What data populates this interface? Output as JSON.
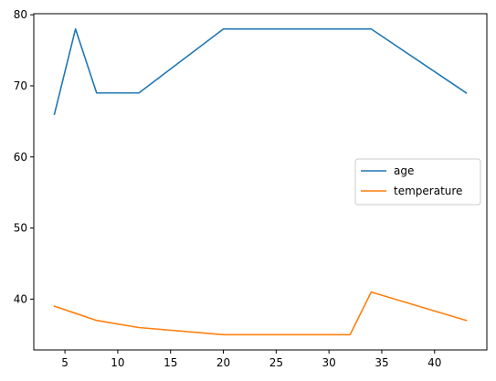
{
  "chart_data": {
    "type": "line",
    "title": "",
    "xlabel": "",
    "ylabel": "",
    "x": [
      4,
      6,
      8,
      12,
      20,
      32,
      34,
      43
    ],
    "xlim": [
      2.05,
      44.95
    ],
    "ylim": [
      32.85,
      80.15
    ],
    "xticks": [
      5,
      10,
      15,
      20,
      25,
      30,
      35,
      40
    ],
    "yticks": [
      40,
      50,
      60,
      70,
      80
    ],
    "grid": false,
    "legend_position": "center-right",
    "series": [
      {
        "name": "age",
        "color": "#1f77b4",
        "values": [
          66,
          78,
          69,
          69,
          78,
          78,
          78,
          69
        ]
      },
      {
        "name": "temperature",
        "color": "#ff7f0e",
        "values": [
          39,
          38,
          37,
          36,
          35,
          35,
          41,
          37
        ]
      }
    ]
  }
}
